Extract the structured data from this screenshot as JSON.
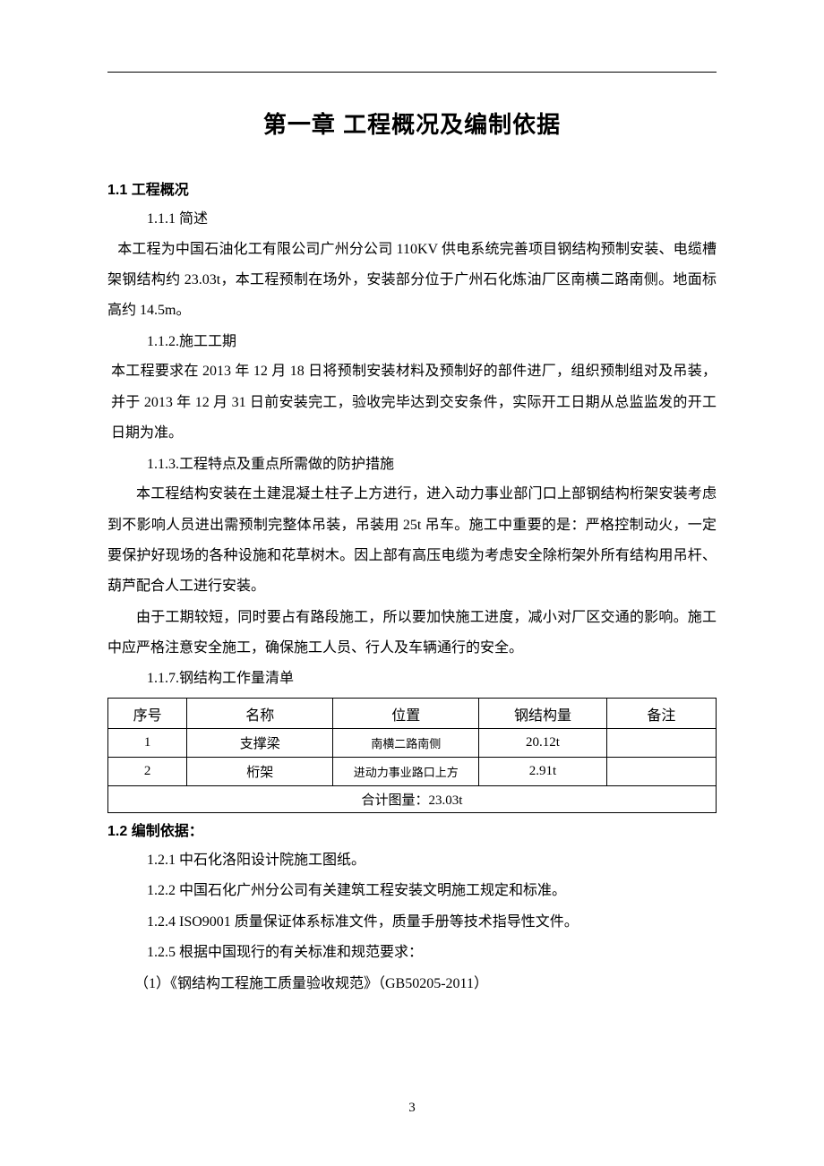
{
  "chapter_title": "第一章 工程概况及编制依据",
  "section_1_1": {
    "heading": "1.1 工程概况",
    "sub_1_1_1": {
      "number": "1.1.1 简述",
      "text": "本工程为中国石油化工有限公司广州分公司 110KV 供电系统完善项目钢结构预制安装、电缆槽架钢结构约 23.03t，本工程预制在场外，安装部分位于广州石化炼油厂区南横二路南侧。地面标高约 14.5m。"
    },
    "sub_1_1_2": {
      "number": "1.1.2.施工工期",
      "text": "本工程要求在 2013 年 12 月 18 日将预制安装材料及预制好的部件进厂，组织预制组对及吊装，并于 2013 年 12 月 31 日前安装完工，验收完毕达到交安条件，实际开工日期从总监监发的开工日期为准。"
    },
    "sub_1_1_3": {
      "number": "1.1.3.工程特点及重点所需做的防护措施",
      "para1": "本工程结构安装在土建混凝土柱子上方进行，进入动力事业部门口上部钢结构桁架安装考虑到不影响人员进出需预制完整体吊装，吊装用 25t 吊车。施工中重要的是：严格控制动火，一定要保护好现场的各种设施和花草树木。因上部有高压电缆为考虑安全除桁架外所有结构用吊杆、葫芦配合人工进行安装。",
      "para2": "由于工期较短，同时要占有路段施工，所以要加快施工进度，减小对厂区交通的影响。施工中应严格注意安全施工，确保施工人员、行人及车辆通行的安全。"
    },
    "sub_1_1_7": {
      "number": "1.1.7.钢结构工作量清单"
    }
  },
  "table": {
    "columns": [
      "序号",
      "名称",
      "位置",
      "钢结构量",
      "备注"
    ],
    "col_widths": [
      "13%",
      "24%",
      "24%",
      "21%",
      "18%"
    ],
    "rows": [
      {
        "seq": "1",
        "name": "支撑梁",
        "location": "南横二路南侧",
        "qty": "20.12t",
        "note": ""
      },
      {
        "seq": "2",
        "name": "桁架",
        "location": "进动力事业路口上方",
        "qty": "2.91t",
        "note": ""
      }
    ],
    "total": "合计图量：23.03t"
  },
  "section_1_2": {
    "heading": "1.2 编制依据：",
    "items": [
      "1.2.1 中石化洛阳设计院施工图纸。",
      "1.2.2 中国石化广州分公司有关建筑工程安装文明施工规定和标准。",
      "1.2.4 ISO9001 质量保证体系标准文件，质量手册等技术指导性文件。",
      "1.2.5 根据中国现行的有关标准和规范要求："
    ],
    "standard_1": "（1）《钢结构工程施工质量验收规范》（GB50205-2011）"
  },
  "page_number": "3"
}
